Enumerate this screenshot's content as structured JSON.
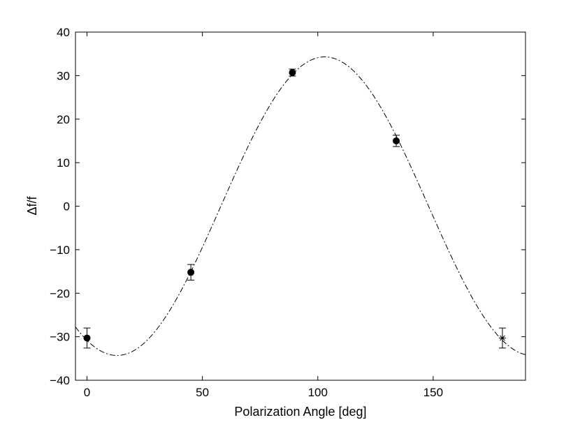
{
  "chart_data": {
    "type": "scatter",
    "xlabel": "Polarization Angle [deg]",
    "ylabel": "Δf/f",
    "xlim": [
      -5,
      190
    ],
    "ylim": [
      -40,
      40
    ],
    "xticks": [
      0,
      50,
      100,
      150
    ],
    "yticks": [
      -40,
      -30,
      -20,
      -10,
      0,
      10,
      20,
      30,
      40
    ],
    "xtick_labels": [
      "0",
      "50",
      "100",
      "150"
    ],
    "ytick_labels": [
      "−40",
      "−30",
      "−20",
      "−10",
      "0",
      "10",
      "20",
      "30",
      "40"
    ],
    "grid": false,
    "legend": "none",
    "series": [
      {
        "marker": "filled-circle",
        "points": [
          {
            "x": 0,
            "y": -30.3,
            "err_low": 2.3,
            "err_high": 2.3
          },
          {
            "x": 45,
            "y": -15.2,
            "err_low": 1.8,
            "err_high": 1.8
          },
          {
            "x": 89,
            "y": 30.7,
            "err_low": 0.8,
            "err_high": 0.8
          },
          {
            "x": 134,
            "y": 15.0,
            "err_low": 1.3,
            "err_high": 1.3
          }
        ]
      },
      {
        "marker": "asterisk",
        "points": [
          {
            "x": 180,
            "y": -30.3,
            "err_low": 2.3,
            "err_high": 2.3
          }
        ]
      }
    ],
    "fit_curve": {
      "style": "dash-dot",
      "model": "sinusoid",
      "amplitude": 34.3,
      "phase_deg": 13,
      "period_deg": 180,
      "offset": 0
    }
  }
}
